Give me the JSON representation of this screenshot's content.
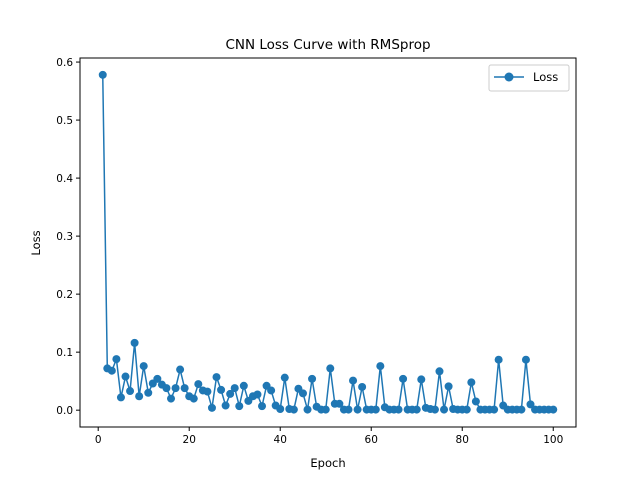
{
  "chart_data": {
    "type": "line",
    "title": "CNN Loss Curve with RMSprop",
    "xlabel": "Epoch",
    "ylabel": "Loss",
    "xlim": [
      -4,
      105
    ],
    "ylim": [
      -0.029,
      0.607
    ],
    "xticks": [
      0,
      20,
      40,
      60,
      80,
      100
    ],
    "yticks": [
      0.0,
      0.1,
      0.2,
      0.3,
      0.4,
      0.5,
      0.6
    ],
    "xtick_labels": [
      "0",
      "20",
      "40",
      "60",
      "80",
      "100"
    ],
    "ytick_labels": [
      "0.0",
      "0.1",
      "0.2",
      "0.3",
      "0.4",
      "0.5",
      "0.6"
    ],
    "grid": false,
    "legend_position": "top-right",
    "series": [
      {
        "name": "Loss",
        "color": "#1f77b4",
        "marker": "circle",
        "x": [
          1,
          2,
          3,
          4,
          5,
          6,
          7,
          8,
          9,
          10,
          11,
          12,
          13,
          14,
          15,
          16,
          17,
          18,
          19,
          20,
          21,
          22,
          23,
          24,
          25,
          26,
          27,
          28,
          29,
          30,
          31,
          32,
          33,
          34,
          35,
          36,
          37,
          38,
          39,
          40,
          41,
          42,
          43,
          44,
          45,
          46,
          47,
          48,
          49,
          50,
          51,
          52,
          53,
          54,
          55,
          56,
          57,
          58,
          59,
          60,
          61,
          62,
          63,
          64,
          65,
          66,
          67,
          68,
          69,
          70,
          71,
          72,
          73,
          74,
          75,
          76,
          77,
          78,
          79,
          80,
          81,
          82,
          83,
          84,
          85,
          86,
          87,
          88,
          89,
          90,
          91,
          92,
          93,
          94,
          95,
          96,
          97,
          98,
          99,
          100
        ],
        "values": [
          0.578,
          0.072,
          0.068,
          0.088,
          0.022,
          0.058,
          0.033,
          0.116,
          0.024,
          0.076,
          0.03,
          0.046,
          0.054,
          0.044,
          0.038,
          0.02,
          0.038,
          0.07,
          0.038,
          0.024,
          0.02,
          0.045,
          0.034,
          0.032,
          0.004,
          0.057,
          0.035,
          0.008,
          0.028,
          0.038,
          0.007,
          0.042,
          0.016,
          0.024,
          0.027,
          0.007,
          0.042,
          0.034,
          0.008,
          0.002,
          0.056,
          0.002,
          0.001,
          0.037,
          0.029,
          0.001,
          0.054,
          0.006,
          0.001,
          0.001,
          0.072,
          0.011,
          0.011,
          0.001,
          0.001,
          0.051,
          0.001,
          0.04,
          0.001,
          0.001,
          0.001,
          0.076,
          0.005,
          0.001,
          0.001,
          0.001,
          0.054,
          0.001,
          0.001,
          0.001,
          0.053,
          0.004,
          0.002,
          0.001,
          0.067,
          0.001,
          0.041,
          0.002,
          0.001,
          0.001,
          0.001,
          0.048,
          0.015,
          0.001,
          0.001,
          0.001,
          0.001,
          0.087,
          0.008,
          0.001,
          0.001,
          0.001,
          0.001,
          0.087,
          0.01,
          0.001,
          0.001,
          0.001,
          0.001,
          0.001
        ]
      }
    ]
  }
}
